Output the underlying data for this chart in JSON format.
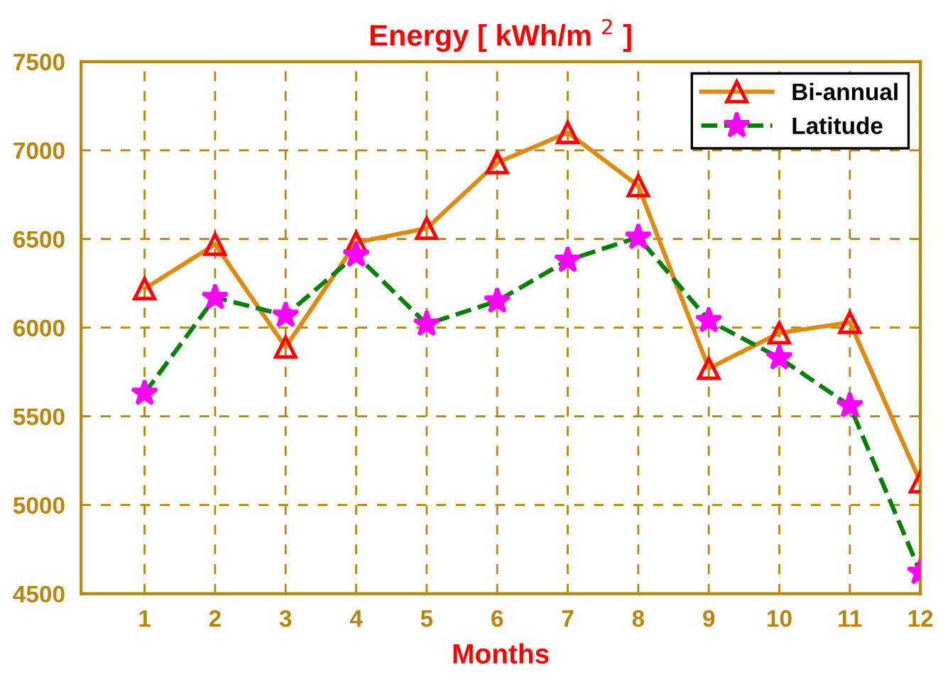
{
  "chart_data": {
    "type": "line",
    "title": "Energy [ kWh/m $^{2}$ ]",
    "xlabel": "Months",
    "x": [
      1,
      2,
      3,
      4,
      5,
      6,
      7,
      8,
      9,
      10,
      11,
      12
    ],
    "series": [
      {
        "name": "Bi-annual",
        "color": "#e08a10",
        "marker": "triangle",
        "line_style": "solid",
        "values": [
          6220,
          6470,
          5890,
          6480,
          6560,
          6930,
          7100,
          6800,
          5770,
          5970,
          6030,
          5130
        ]
      },
      {
        "name": "Latitude",
        "color": "#008000",
        "marker": "star",
        "line_style": "dashed",
        "values": [
          5630,
          6170,
          6070,
          6410,
          6020,
          6150,
          6380,
          6510,
          6040,
          5830,
          5560,
          4620
        ]
      }
    ],
    "xlim": [
      0.1,
      12
    ],
    "xticks": [
      1,
      2,
      3,
      4,
      5,
      6,
      7,
      8,
      9,
      10,
      11,
      12
    ],
    "ylim": [
      4500,
      7500
    ],
    "yticks": [
      4500,
      5000,
      5500,
      6000,
      6500,
      7000,
      7500
    ],
    "grid": true,
    "legend": "top right"
  }
}
